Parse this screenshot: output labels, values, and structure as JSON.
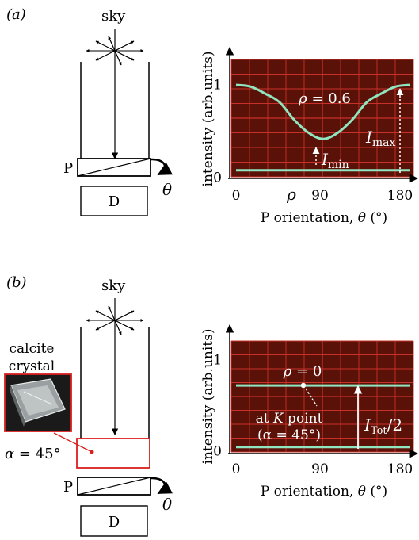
{
  "panels": [
    {
      "label": "(a)",
      "sky_label": "sky",
      "polarizer_label": "P",
      "detector_label": "D",
      "rotation_symbol": "θ",
      "chart": {
        "ylabel": "intensity (arb.units)",
        "xlabel_text": "P orientation, ",
        "xlabel_symbol": "θ",
        "xlabel_unit": " (°)",
        "xticks": [
          "0",
          "90",
          "180"
        ],
        "yticks": [
          "0",
          "1"
        ],
        "rho_label": "ρ",
        "annotation_rho_symbol": "ρ",
        "annotation_rho_value": " = 0.6",
        "annotation_imin_main": "I",
        "annotation_imin_sub": "min",
        "annotation_imax_main": "I",
        "annotation_imax_sub": "max"
      }
    },
    {
      "label": "(b)",
      "sky_label": "sky",
      "polarizer_label": "P",
      "detector_label": "D",
      "rotation_symbol": "θ",
      "crystal_label_line1": "calcite",
      "crystal_label_line2": "crystal",
      "alpha_symbol": "α",
      "alpha_value": " = 45°",
      "chart": {
        "ylabel": "intensity (arb.units)",
        "xlabel_text": "P orientation, ",
        "xlabel_symbol": "θ",
        "xlabel_unit": " (°)",
        "xticks": [
          "0",
          "90",
          "180"
        ],
        "yticks": [
          "0",
          "1"
        ],
        "annotation_rho_symbol": "ρ",
        "annotation_rho_value": " = 0",
        "annotation_k_line1_prefix": "at ",
        "annotation_k_symbol": "K",
        "annotation_k_line1_suffix": " point",
        "annotation_k_line2": "(α = 45°)",
        "annotation_itot_main": "I",
        "annotation_itot_sub": "Tot",
        "annotation_itot_suffix": "/2"
      }
    }
  ],
  "colors": {
    "screen_bg": "#5a1208",
    "grid": "#c8302a",
    "trace": "#8fe6c0",
    "crystal_frame": "#d8201e",
    "annotation": "#ffffff"
  },
  "chart_data": [
    {
      "type": "line",
      "xlim": [
        0,
        180
      ],
      "ylim": [
        0,
        1
      ],
      "series": [
        {
          "x": [
            0,
            15,
            30,
            45,
            60,
            75,
            90,
            105,
            120,
            135,
            150,
            165,
            180
          ],
          "y": [
            1.0,
            0.98,
            0.9,
            0.8,
            0.6,
            0.45,
            0.38,
            0.45,
            0.6,
            0.8,
            0.9,
            0.98,
            1.0
          ]
        },
        {
          "x": [
            0,
            180
          ],
          "y": [
            0.02,
            0.02
          ]
        }
      ],
      "annotations": [
        {
          "text": "ρ = 0.6",
          "x": 90,
          "y": 0.75
        },
        {
          "text": "I_min",
          "x": 90,
          "y": 0.38
        },
        {
          "text": "I_max",
          "x": 180,
          "y": 1.0
        }
      ]
    },
    {
      "type": "line",
      "xlim": [
        0,
        180
      ],
      "ylim": [
        0,
        1
      ],
      "series": [
        {
          "x": [
            0,
            180
          ],
          "y": [
            0.72,
            0.72
          ]
        },
        {
          "x": [
            0,
            180
          ],
          "y": [
            0.02,
            0.02
          ]
        }
      ],
      "annotations": [
        {
          "text": "ρ = 0",
          "x": 90,
          "y": 0.9
        },
        {
          "text": "I_Tot/2",
          "x": 135,
          "y": 0.72
        }
      ]
    }
  ]
}
